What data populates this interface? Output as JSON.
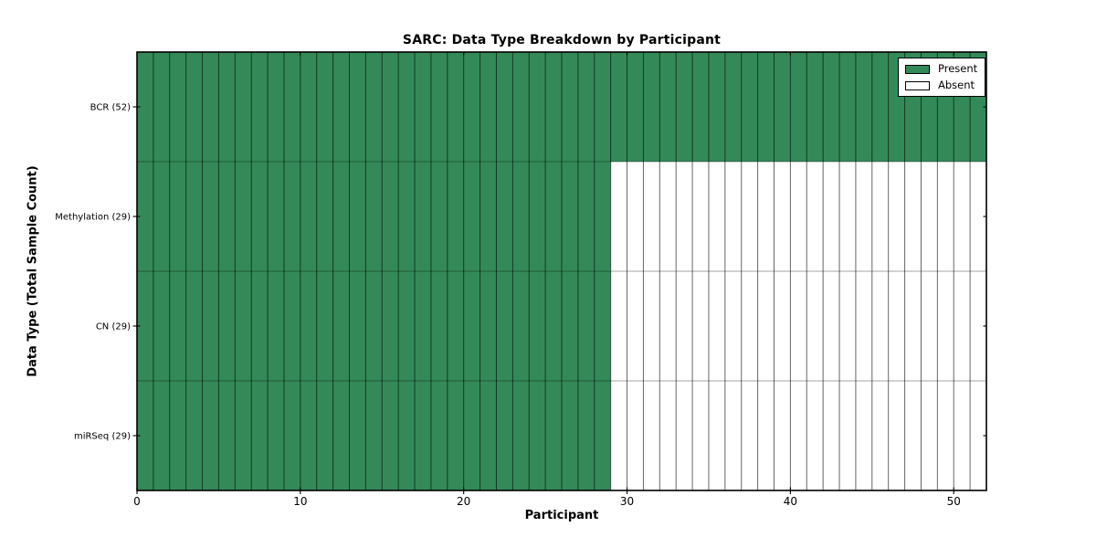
{
  "chart_data": {
    "type": "heatmap",
    "title": "SARC: Data Type Breakdown by Participant",
    "xlabel": "Participant",
    "ylabel": "Data Type (Total Sample Count)",
    "x_range": [
      0,
      52
    ],
    "x_ticks": [
      0,
      10,
      20,
      30,
      40,
      50
    ],
    "n_participants": 52,
    "rows": [
      {
        "label": "BCR (52)",
        "total_samples": 52,
        "present_participants": 52
      },
      {
        "label": "Methylation (29)",
        "total_samples": 29,
        "present_participants": 29
      },
      {
        "label": "CN (29)",
        "total_samples": 29,
        "present_participants": 29
      },
      {
        "label": "miRSeq (29)",
        "total_samples": 29,
        "present_participants": 29
      }
    ],
    "legend": {
      "position": "upper right",
      "entries": [
        {
          "label": "Present",
          "color": "#338a58"
        },
        {
          "label": "Absent",
          "color": "#ffffff"
        }
      ]
    },
    "colors": {
      "present": "#338a58",
      "absent": "#ffffff",
      "frame": "#000000",
      "grid_vertical": "rgba(0,0,0,0.60)",
      "grid_horizontal": "rgba(0,0,0,0.35)"
    }
  }
}
